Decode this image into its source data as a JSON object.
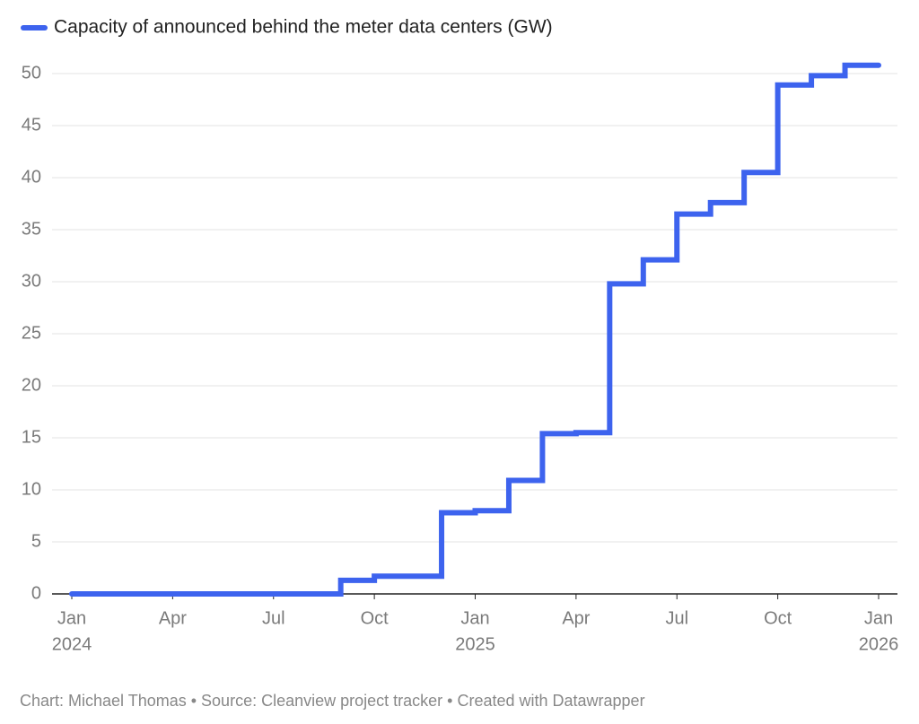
{
  "chart_data": {
    "type": "step",
    "legend_title": "Capacity of announced behind the meter data centers (GW)",
    "footer": "Chart: Michael Thomas • Source: Cleanview project tracker • Created with Datawrapper",
    "x": [
      "2024-01",
      "2024-02",
      "2024-03",
      "2024-04",
      "2024-05",
      "2024-06",
      "2024-07",
      "2024-08",
      "2024-09",
      "2024-10",
      "2024-11",
      "2024-12",
      "2025-01",
      "2025-02",
      "2025-03",
      "2025-04",
      "2025-05",
      "2025-06",
      "2025-07",
      "2025-08",
      "2025-09",
      "2025-10",
      "2025-11",
      "2025-12",
      "2026-01"
    ],
    "series": [
      {
        "name": "Capacity of announced behind the meter data centers (GW)",
        "color": "#3d63ee",
        "values": [
          0,
          0,
          0,
          0,
          0,
          0,
          0,
          0,
          1.3,
          1.7,
          1.7,
          7.8,
          8.0,
          10.9,
          15.4,
          15.5,
          29.8,
          32.1,
          36.5,
          37.6,
          40.5,
          48.9,
          49.8,
          50.8,
          50.8
        ]
      }
    ],
    "xlim": [
      "2024-01",
      "2026-01"
    ],
    "xticks": [
      {
        "value": "2024-01",
        "label": [
          "Jan",
          "2024"
        ]
      },
      {
        "value": "2024-04",
        "label": [
          "Apr"
        ]
      },
      {
        "value": "2024-07",
        "label": [
          "Jul"
        ]
      },
      {
        "value": "2024-10",
        "label": [
          "Oct"
        ]
      },
      {
        "value": "2025-01",
        "label": [
          "Jan",
          "2025"
        ]
      },
      {
        "value": "2025-04",
        "label": [
          "Apr"
        ]
      },
      {
        "value": "2025-07",
        "label": [
          "Jul"
        ]
      },
      {
        "value": "2025-10",
        "label": [
          "Oct"
        ]
      },
      {
        "value": "2026-01",
        "label": [
          "Jan",
          "2026"
        ]
      }
    ],
    "ylim": [
      0,
      50
    ],
    "yticks": [
      0,
      5,
      10,
      15,
      20,
      25,
      30,
      35,
      40,
      45,
      50
    ],
    "grid": true
  }
}
